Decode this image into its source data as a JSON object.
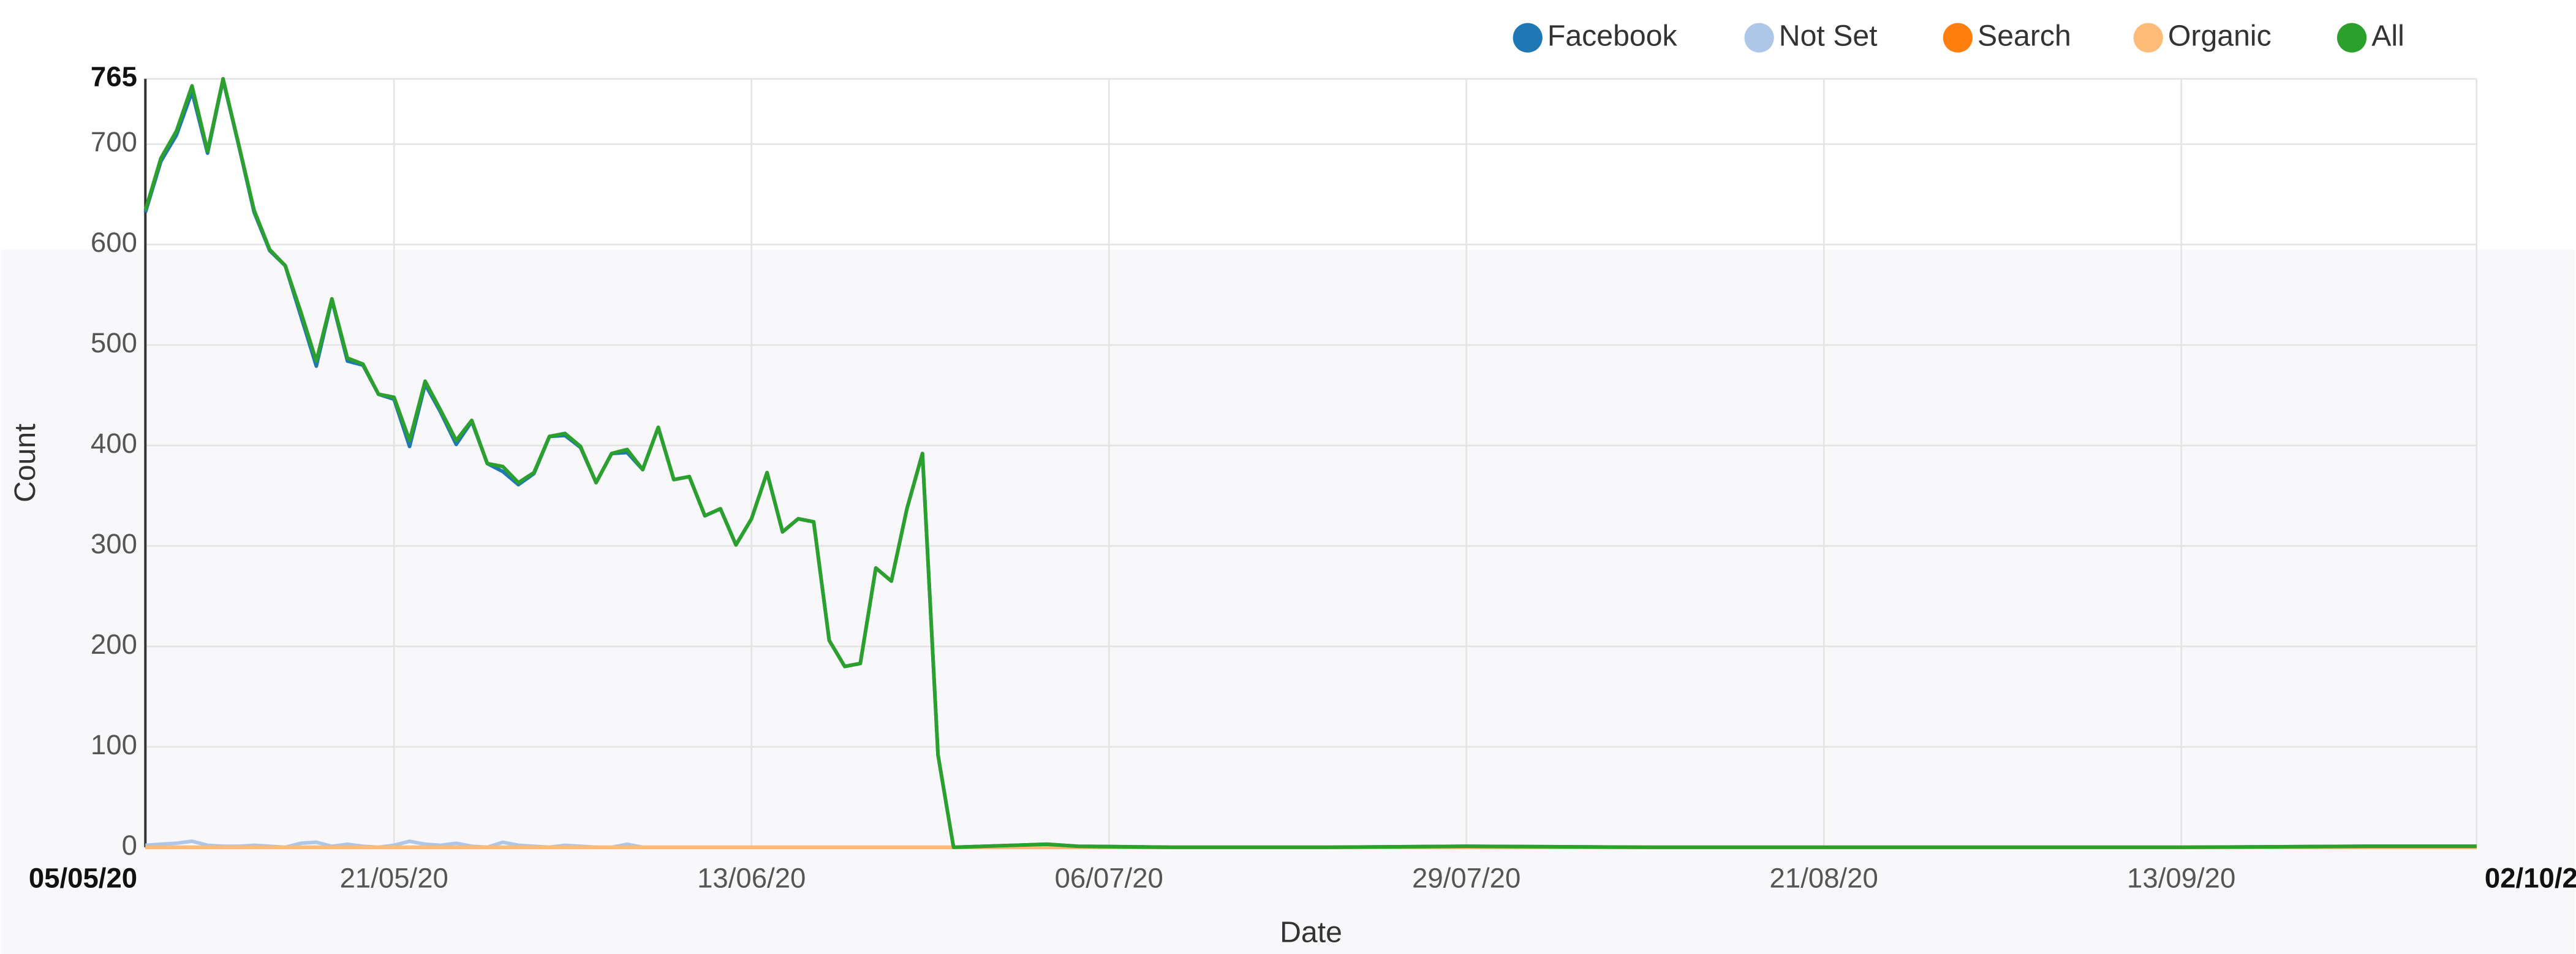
{
  "chart_data": {
    "type": "line",
    "y_label": "Count",
    "x_label": "Date",
    "legend": "top-right",
    "grid": true,
    "x": [
      "05/05/20",
      "06/05/20",
      "07/05/20",
      "08/05/20",
      "09/05/20",
      "10/05/20",
      "11/05/20",
      "12/05/20",
      "13/05/20",
      "14/05/20",
      "15/05/20",
      "16/05/20",
      "17/05/20",
      "18/05/20",
      "19/05/20",
      "20/05/20",
      "21/05/20",
      "22/05/20",
      "23/05/20",
      "24/05/20",
      "25/05/20",
      "26/05/20",
      "27/05/20",
      "28/05/20",
      "29/05/20",
      "30/05/20",
      "31/05/20",
      "01/06/20",
      "02/06/20",
      "03/06/20",
      "04/06/20",
      "05/06/20",
      "06/06/20",
      "07/06/20",
      "08/06/20",
      "09/06/20",
      "10/06/20",
      "11/06/20",
      "12/06/20",
      "13/06/20",
      "14/06/20",
      "15/06/20",
      "16/06/20",
      "17/06/20",
      "18/06/20",
      "19/06/20",
      "20/06/20",
      "21/06/20",
      "22/06/20",
      "23/06/20",
      "24/06/20",
      "25/06/20",
      "26/06/20",
      "28/06/20",
      "30/06/20",
      "02/07/20",
      "04/07/20",
      "10/07/20",
      "20/07/20",
      "29/07/20",
      "10/08/20",
      "21/08/20",
      "01/09/20",
      "13/09/20",
      "25/09/20",
      "02/10/20"
    ],
    "xlim": [
      "05/05/20",
      "02/10/20"
    ],
    "xticks": [
      "05/05/20",
      "21/05/20",
      "13/06/20",
      "06/07/20",
      "29/07/20",
      "21/08/20",
      "13/09/20",
      "02/10/20"
    ],
    "ylim": [
      0,
      765
    ],
    "yticks": [
      0,
      100,
      200,
      300,
      400,
      500,
      600,
      700,
      765
    ],
    "series": [
      {
        "name": "Facebook",
        "color": "#1f77b4",
        "values": [
          632,
          683,
          709,
          752,
          691,
          764,
          699,
          632,
          594,
          579,
          529,
          479,
          545,
          484,
          480,
          451,
          446,
          399,
          461,
          433,
          401,
          424,
          382,
          374,
          361,
          372,
          409,
          410,
          398,
          363,
          392,
          393,
          376,
          418,
          366,
          369,
          330,
          337,
          301,
          327,
          373,
          314,
          327,
          324,
          206,
          180,
          183,
          278,
          265,
          337,
          392,
          92,
          0,
          1,
          2,
          3,
          1,
          0,
          0,
          1,
          0,
          0,
          0,
          0,
          1,
          1
        ]
      },
      {
        "name": "Not Set",
        "color": "#aec7e8",
        "values": [
          2,
          3,
          4,
          6,
          2,
          1,
          1,
          2,
          1,
          0,
          4,
          5,
          1,
          3,
          1,
          0,
          2,
          6,
          3,
          2,
          4,
          1,
          0,
          5,
          2,
          1,
          0,
          2,
          1,
          0,
          0,
          3,
          0,
          0,
          0,
          0,
          0,
          0,
          0,
          0,
          0,
          0,
          0,
          0,
          0,
          0,
          0,
          0,
          0,
          0,
          0,
          0,
          0,
          0,
          0,
          0,
          0,
          0,
          0,
          0,
          0,
          0,
          0,
          0,
          0,
          0
        ]
      },
      {
        "name": "Search",
        "color": "#ff7f0e",
        "values": [
          0,
          0,
          0,
          0,
          0,
          0,
          0,
          0,
          0,
          0,
          0,
          0,
          0,
          0,
          0,
          0,
          0,
          0,
          0,
          0,
          0,
          0,
          0,
          0,
          0,
          0,
          0,
          0,
          0,
          0,
          0,
          0,
          0,
          0,
          0,
          0,
          0,
          0,
          0,
          0,
          0,
          0,
          0,
          0,
          0,
          0,
          0,
          0,
          0,
          0,
          0,
          0,
          0,
          0,
          0,
          0,
          0,
          0,
          0,
          0,
          0,
          0,
          0,
          0,
          0,
          0
        ]
      },
      {
        "name": "Organic",
        "color": "#ffbb78",
        "values": [
          0,
          0,
          0,
          0,
          0,
          0,
          0,
          0,
          0,
          0,
          0,
          0,
          0,
          0,
          0,
          0,
          0,
          0,
          0,
          0,
          0,
          0,
          0,
          0,
          0,
          0,
          0,
          0,
          0,
          0,
          0,
          0,
          0,
          0,
          0,
          0,
          0,
          0,
          0,
          0,
          0,
          0,
          0,
          0,
          0,
          0,
          0,
          0,
          0,
          0,
          0,
          0,
          0,
          0,
          0,
          0,
          0,
          0,
          0,
          0,
          0,
          0,
          0,
          0,
          0,
          0
        ]
      },
      {
        "name": "All",
        "color": "#2ca02c",
        "values": [
          634,
          686,
          713,
          758,
          693,
          765,
          700,
          634,
          595,
          579,
          533,
          484,
          546,
          487,
          481,
          451,
          448,
          405,
          464,
          435,
          405,
          425,
          382,
          379,
          363,
          373,
          409,
          412,
          399,
          363,
          392,
          396,
          376,
          418,
          366,
          369,
          330,
          337,
          301,
          327,
          373,
          314,
          327,
          324,
          206,
          180,
          183,
          278,
          265,
          337,
          392,
          92,
          0,
          1,
          2,
          3,
          1,
          0,
          0,
          1,
          0,
          0,
          0,
          0,
          1,
          1
        ]
      }
    ]
  }
}
